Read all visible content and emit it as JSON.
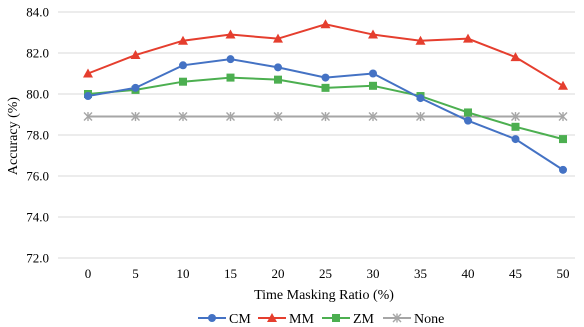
{
  "chart_data": {
    "type": "line",
    "title": "",
    "xlabel": "Time Masking Ratio (%)",
    "ylabel": "Accuracy (%)",
    "x": [
      "0",
      "5",
      "10",
      "15",
      "20",
      "25",
      "30",
      "35",
      "40",
      "45",
      "50"
    ],
    "ylim": [
      72.0,
      84.0
    ],
    "yticks": [
      "72.0",
      "74.0",
      "76.0",
      "78.0",
      "80.0",
      "82.0",
      "84.0"
    ],
    "grid": "horizontal",
    "legend_position": "bottom",
    "series": [
      {
        "name": "CM",
        "color": "#4472C4",
        "marker": "circle",
        "values": [
          79.9,
          80.3,
          81.4,
          81.7,
          81.3,
          80.8,
          81.0,
          79.8,
          78.7,
          77.8,
          76.3
        ]
      },
      {
        "name": "MM",
        "color": "#E53E2E",
        "marker": "triangle",
        "values": [
          81.0,
          81.9,
          82.6,
          82.9,
          82.7,
          83.4,
          82.9,
          82.6,
          82.7,
          81.8,
          80.4
        ]
      },
      {
        "name": "ZM",
        "color": "#4CAF50",
        "marker": "square",
        "values": [
          80.0,
          80.2,
          80.6,
          80.8,
          80.7,
          80.3,
          80.4,
          79.9,
          79.1,
          78.4,
          77.8
        ]
      },
      {
        "name": "None",
        "color": "#A6A6A6",
        "marker": "x",
        "values": [
          78.9,
          78.9,
          78.9,
          78.9,
          78.9,
          78.9,
          78.9,
          78.9,
          78.9,
          78.9,
          78.9
        ]
      }
    ]
  }
}
